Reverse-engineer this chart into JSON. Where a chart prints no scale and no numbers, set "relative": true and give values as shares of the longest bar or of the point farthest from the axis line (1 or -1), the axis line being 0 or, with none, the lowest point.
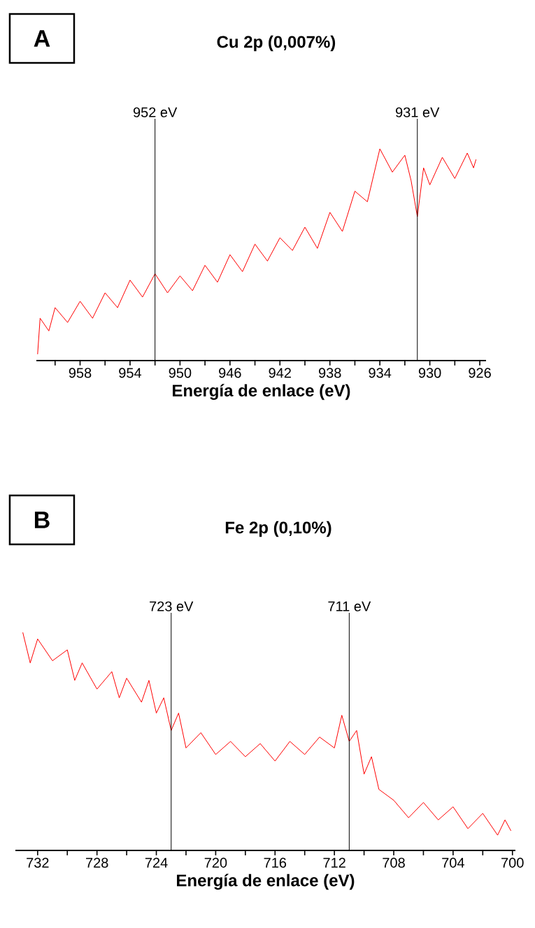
{
  "chart_data": [
    {
      "type": "line",
      "title": "Cu 2p (0,007%)",
      "xlabel": "Energía de enlace (eV)",
      "annotations": [
        "A"
      ],
      "relative": true,
      "xlim": [
        961.5,
        925.5
      ],
      "xticks": [
        {
          "value": 960,
          "label": null
        },
        958,
        {
          "value": 956,
          "label": null
        },
        954,
        {
          "value": 952,
          "label": null
        },
        950,
        {
          "value": 948,
          "label": null
        },
        946,
        {
          "value": 944,
          "label": null
        },
        942,
        {
          "value": 940,
          "label": null
        },
        938,
        {
          "value": 936,
          "label": null
        },
        934,
        {
          "value": 932,
          "label": null
        },
        930,
        {
          "value": 928,
          "label": null
        },
        926
      ],
      "ref_lines": [
        {
          "axis": "x",
          "value": 952,
          "label": "952 eV"
        },
        {
          "axis": "x",
          "value": 931,
          "label": "931 eV"
        }
      ],
      "series": [
        {
          "color": "#ff0000",
          "x": [
            961.4,
            961.2,
            960.5,
            960,
            959,
            958,
            957,
            956,
            955,
            954,
            953,
            952,
            951,
            950,
            949,
            948,
            947,
            946,
            945,
            944,
            943,
            942,
            941,
            940,
            939,
            938,
            937,
            936,
            935,
            934,
            933,
            932,
            931.5,
            931,
            930.5,
            930,
            929,
            928,
            927,
            926.5,
            926.3
          ],
          "values": [
            0.03,
            0.2,
            0.14,
            0.25,
            0.18,
            0.28,
            0.2,
            0.32,
            0.25,
            0.38,
            0.3,
            0.41,
            0.32,
            0.4,
            0.33,
            0.45,
            0.37,
            0.5,
            0.42,
            0.55,
            0.47,
            0.58,
            0.52,
            0.63,
            0.53,
            0.7,
            0.61,
            0.8,
            0.75,
            1,
            0.89,
            0.97,
            0.85,
            0.68,
            0.91,
            0.83,
            0.96,
            0.86,
            0.98,
            0.91,
            0.95
          ]
        }
      ]
    },
    {
      "type": "line",
      "title": "Fe 2p (0,10%)",
      "xlabel": "Energía de enlace (eV)",
      "annotations": [
        "B"
      ],
      "relative": true,
      "xlim": [
        733.5,
        699.8
      ],
      "xticks": [
        732,
        {
          "value": 730,
          "label": null
        },
        728,
        {
          "value": 726,
          "label": null
        },
        724,
        {
          "value": 722,
          "label": null
        },
        720,
        {
          "value": 718,
          "label": null
        },
        716,
        {
          "value": 714,
          "label": null
        },
        712,
        {
          "value": 710,
          "label": null
        },
        708,
        {
          "value": 706,
          "label": null
        },
        704,
        {
          "value": 702,
          "label": null
        },
        700
      ],
      "ref_lines": [
        {
          "axis": "x",
          "value": 723,
          "label": "723 eV"
        },
        {
          "axis": "x",
          "value": 711,
          "label": "711 eV"
        }
      ],
      "series": [
        {
          "color": "#ff0000",
          "x": [
            733.0,
            732.5,
            732,
            731,
            730,
            729.5,
            729,
            728,
            727,
            726.5,
            726,
            725,
            724.5,
            724,
            723.5,
            723,
            722.5,
            722,
            721,
            720,
            719,
            718,
            717,
            716,
            715,
            714,
            713,
            712,
            711.5,
            711,
            710.5,
            710,
            709.5,
            709,
            708,
            707,
            706,
            705,
            704,
            703,
            702,
            701,
            700.5,
            700.1
          ],
          "values": [
            1,
            0.86,
            0.97,
            0.87,
            0.92,
            0.78,
            0.86,
            0.74,
            0.82,
            0.7,
            0.79,
            0.68,
            0.78,
            0.63,
            0.7,
            0.55,
            0.63,
            0.47,
            0.54,
            0.44,
            0.5,
            0.43,
            0.49,
            0.41,
            0.5,
            0.44,
            0.52,
            0.47,
            0.62,
            0.5,
            0.55,
            0.35,
            0.43,
            0.28,
            0.23,
            0.15,
            0.22,
            0.14,
            0.2,
            0.1,
            0.17,
            0.07,
            0.14,
            0.09
          ]
        }
      ]
    }
  ]
}
